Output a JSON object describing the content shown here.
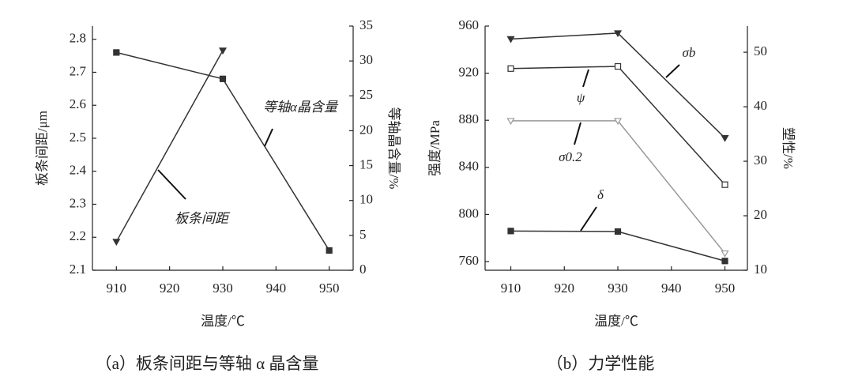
{
  "chart_data": [
    {
      "type": "line",
      "caption": "（a）板条间距与等轴 α 晶含量",
      "xlabel": "温度/℃",
      "ylabel": "板条间距/μm",
      "y2label": "等轴晶含量/%",
      "x": [
        910,
        930,
        950
      ],
      "xlim": [
        905.5,
        954.5
      ],
      "xticks": [
        910,
        920,
        930,
        940,
        950
      ],
      "ylim": [
        2.1,
        2.84
      ],
      "yticks": [
        2.1,
        2.2,
        2.3,
        2.4,
        2.5,
        2.6,
        2.7,
        2.8
      ],
      "y2lim": [
        0,
        35
      ],
      "y2ticks": [
        0,
        5,
        10,
        15,
        20,
        25,
        30,
        35
      ],
      "series": [
        {
          "name": "板条间距",
          "color": "#333333",
          "marker": "square",
          "values": [
            2.76,
            2.68,
            2.16
          ]
        },
        {
          "name": "等轴α晶含量",
          "color": "#333333",
          "marker": "triangle",
          "axis": "y2",
          "values": [
            4.1,
            31.5,
            null
          ]
        }
      ]
    },
    {
      "type": "line",
      "caption": "（b）力学性能",
      "xlabel": "温度/℃",
      "ylabel": "强度/MPa",
      "y2label": "塑性/%",
      "x": [
        910,
        930,
        950
      ],
      "xlim": [
        905.2,
        954.2
      ],
      "xticks": [
        910,
        920,
        930,
        940,
        950
      ],
      "ylim": [
        752.6,
        960
      ],
      "yticks": [
        760,
        800,
        840,
        880,
        920,
        960
      ],
      "y2lim": [
        10,
        54.8
      ],
      "y2ticks": [
        10,
        20,
        30,
        40,
        50
      ],
      "series": [
        {
          "name": "σb",
          "color": "#333333",
          "marker": "triangle",
          "values": [
            949,
            954,
            865
          ]
        },
        {
          "name": "ψ",
          "color": "#333333",
          "marker": "open-square",
          "axis": "y2",
          "values": [
            47,
            47.4,
            25.7
          ]
        },
        {
          "name": "σ0.2",
          "color": "#999999",
          "marker": "open-triangle",
          "values": [
            879.5,
            879.5,
            767
          ]
        },
        {
          "name": "δ",
          "color": "#333333",
          "marker": "square",
          "axis": "y2",
          "values": [
            17.2,
            17.1,
            11.7
          ]
        }
      ]
    }
  ]
}
